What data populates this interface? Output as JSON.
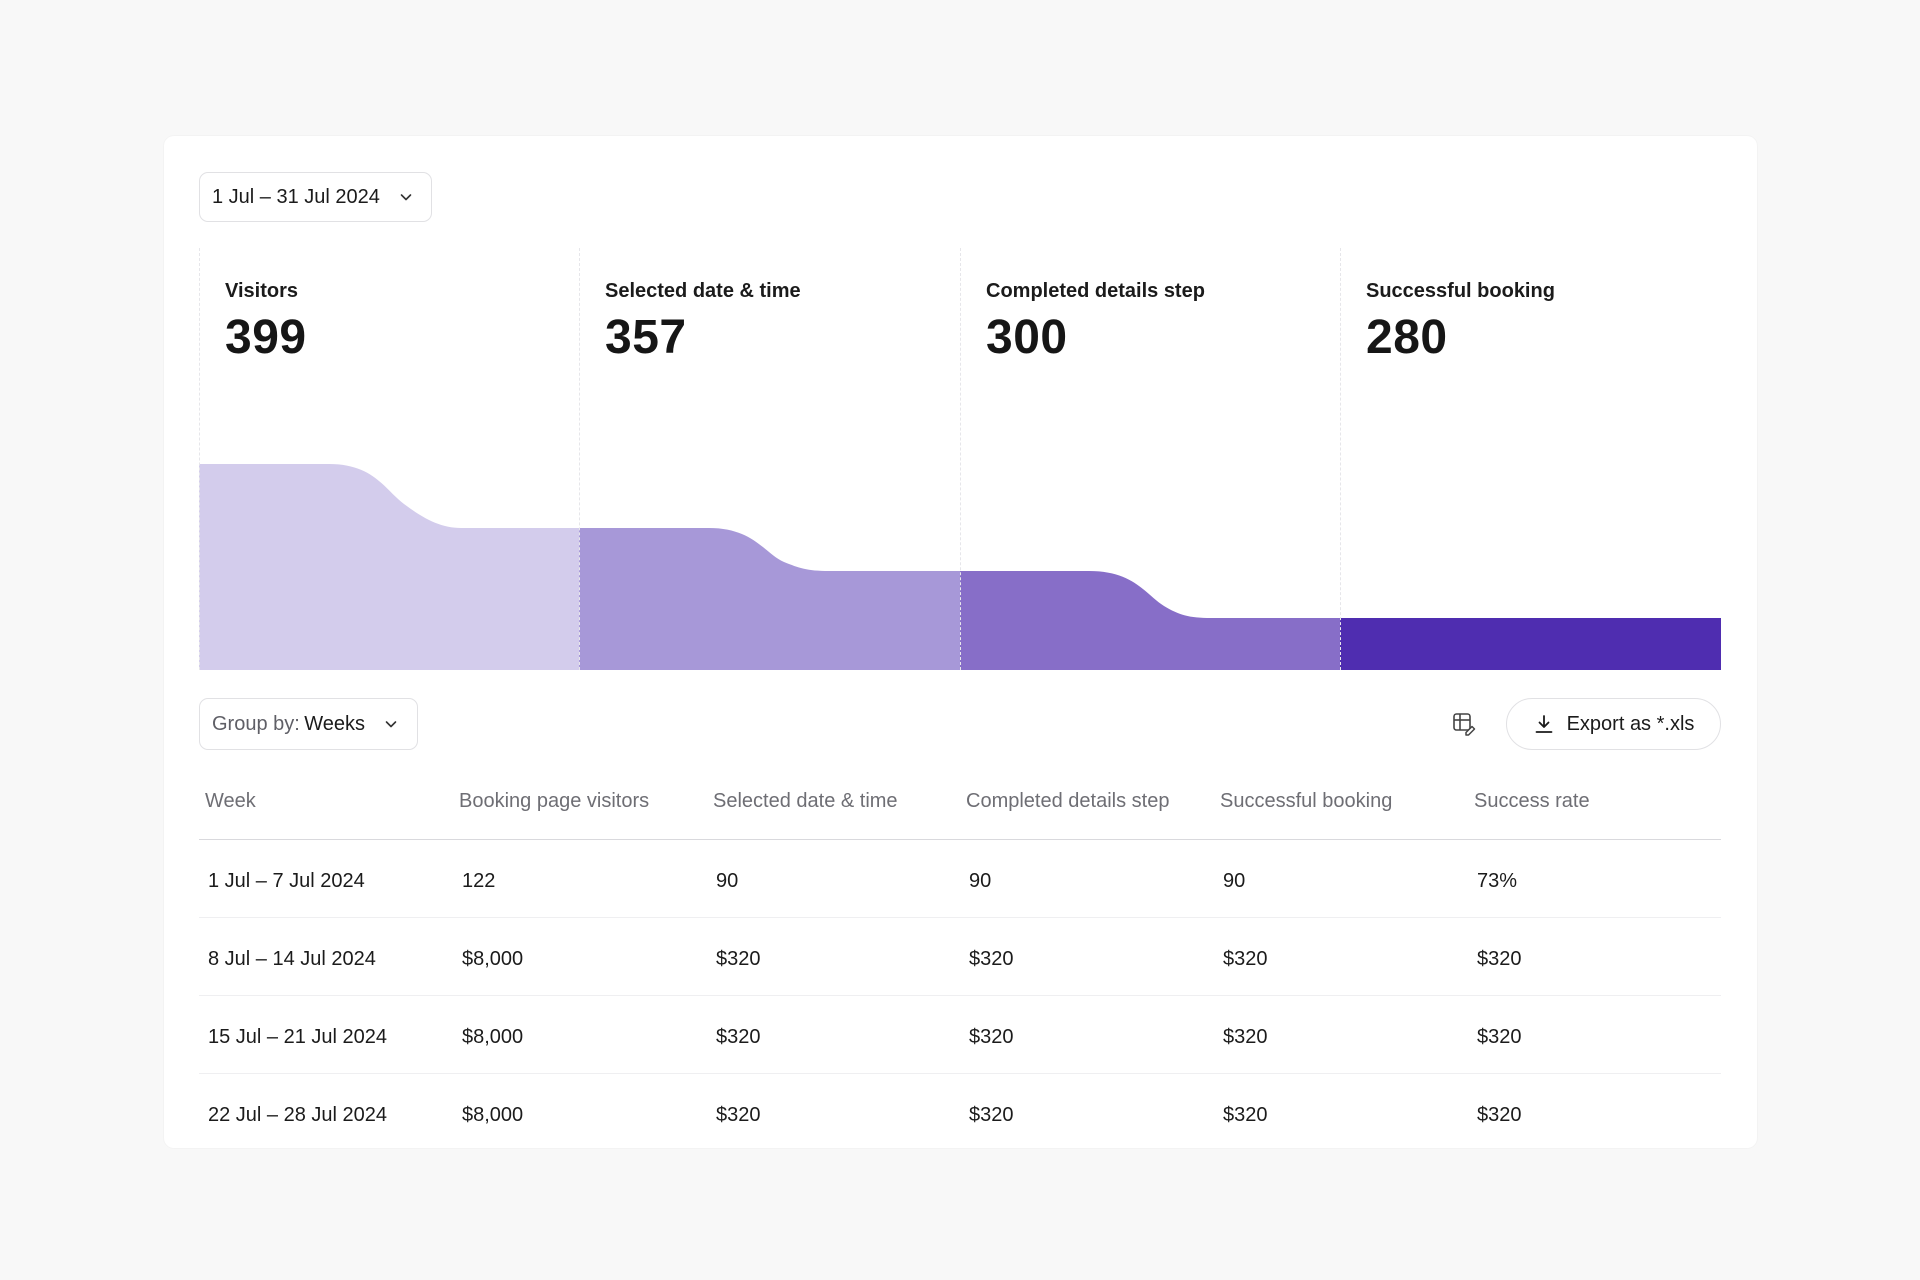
{
  "date_range": {
    "label": "1 Jul – 31 Jul 2024"
  },
  "funnel": {
    "steps": [
      {
        "label": "Visitors",
        "value": "399",
        "color": "#d3ccec"
      },
      {
        "label": "Selected date & time",
        "value": "357",
        "color": "#a798d8"
      },
      {
        "label": "Completed details step",
        "value": "300",
        "color": "#876ec8"
      },
      {
        "label": "Successful booking",
        "value": "280",
        "color": "#4f2db0"
      }
    ]
  },
  "toolbar": {
    "group_by_key": "Group by:",
    "group_by_value": "Weeks",
    "export_label": "Export as *.xls"
  },
  "table": {
    "columns": [
      "Week",
      "Booking page visitors",
      "Selected date & time",
      "Completed details step",
      "Successful booking",
      "Success rate"
    ],
    "rows": [
      [
        "1 Jul – 7 Jul 2024",
        "122",
        "90",
        "90",
        "90",
        "73%"
      ],
      [
        "8 Jul – 14 Jul 2024",
        "$8,000",
        "$320",
        "$320",
        "$320",
        "$320"
      ],
      [
        "15 Jul – 21 Jul 2024",
        "$8,000",
        "$320",
        "$320",
        "$320",
        "$320"
      ],
      [
        "22 Jul – 28 Jul 2024",
        "$8,000",
        "$320",
        "$320",
        "$320",
        "$320"
      ]
    ]
  }
}
